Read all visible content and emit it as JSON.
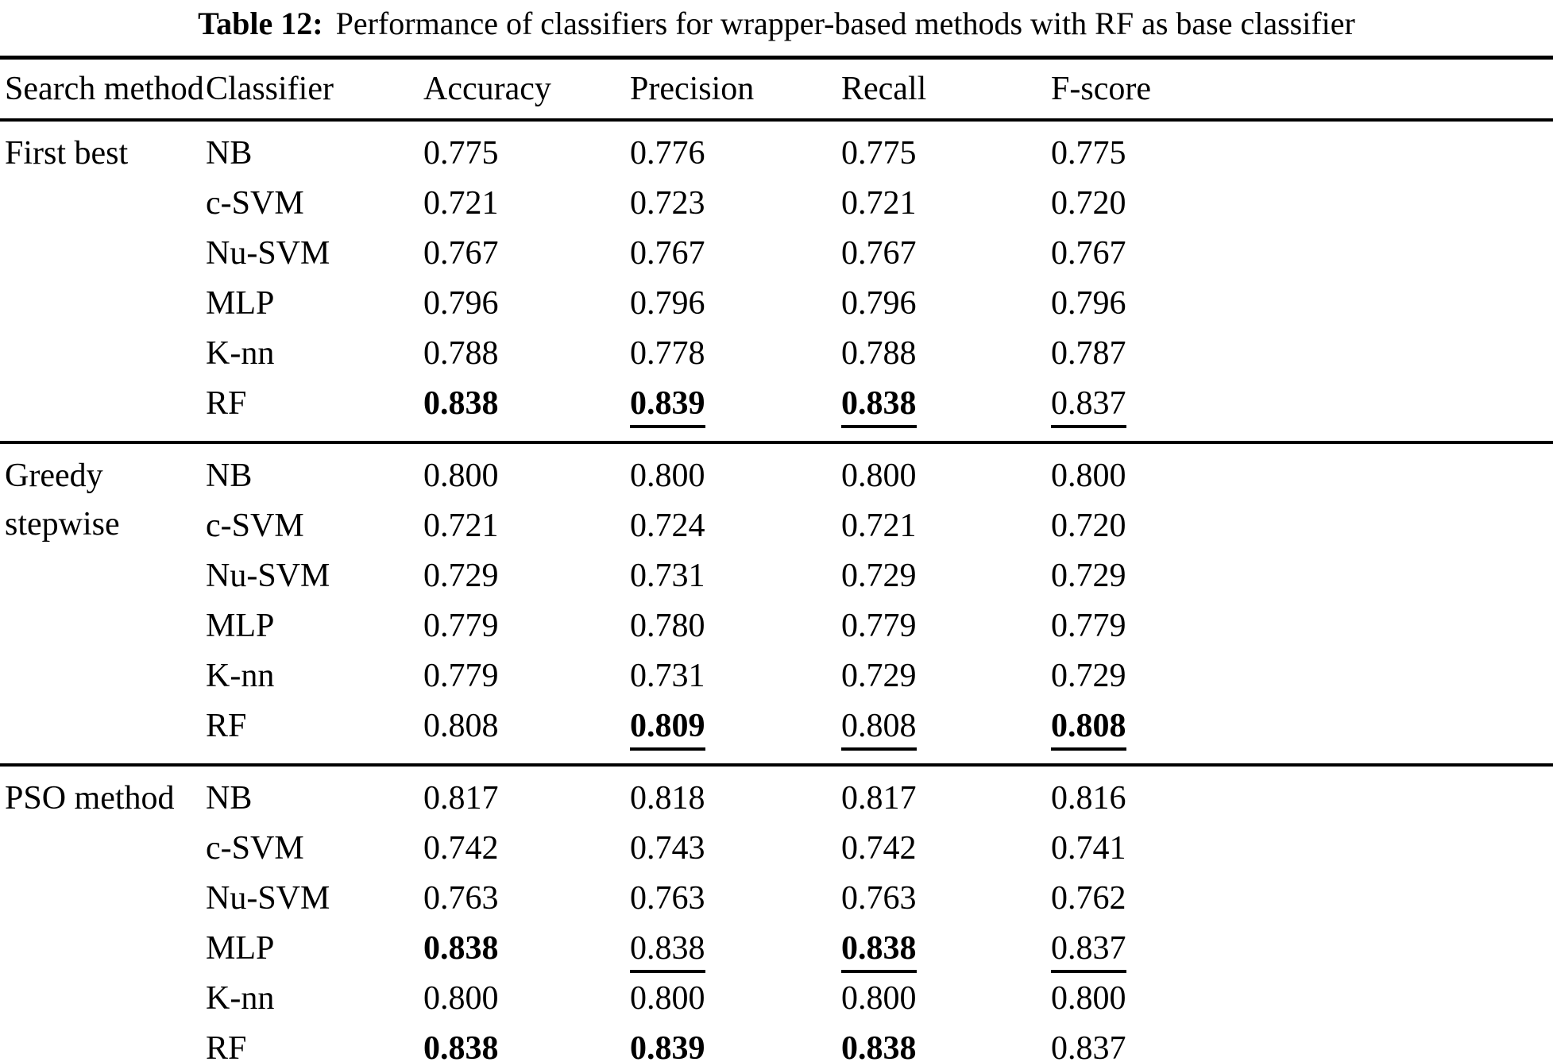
{
  "caption": {
    "label": "Table 12:",
    "text": "Performance of classifiers for wrapper-based methods with RF as base classifier"
  },
  "table": {
    "headers": [
      "Search method",
      "Classifier",
      "Accuracy",
      "Precision",
      "Recall",
      "F-score"
    ],
    "groups": [
      {
        "method": "First best",
        "rows": [
          {
            "classifier": "NB",
            "values": [
              {
                "v": "0.775"
              },
              {
                "v": "0.776"
              },
              {
                "v": "0.775"
              },
              {
                "v": "0.775"
              }
            ]
          },
          {
            "classifier": "c-SVM",
            "values": [
              {
                "v": "0.721"
              },
              {
                "v": "0.723"
              },
              {
                "v": "0.721"
              },
              {
                "v": "0.720"
              }
            ]
          },
          {
            "classifier": "Nu-SVM",
            "values": [
              {
                "v": "0.767"
              },
              {
                "v": "0.767"
              },
              {
                "v": "0.767"
              },
              {
                "v": "0.767"
              }
            ]
          },
          {
            "classifier": "MLP",
            "values": [
              {
                "v": "0.796"
              },
              {
                "v": "0.796"
              },
              {
                "v": "0.796"
              },
              {
                "v": "0.796"
              }
            ]
          },
          {
            "classifier": "K-nn",
            "values": [
              {
                "v": "0.788"
              },
              {
                "v": "0.778"
              },
              {
                "v": "0.788"
              },
              {
                "v": "0.787"
              }
            ]
          },
          {
            "classifier": "RF",
            "values": [
              {
                "v": "0.838",
                "b": true
              },
              {
                "v": "0.839",
                "b": true,
                "u": true
              },
              {
                "v": "0.838",
                "b": true,
                "u": true
              },
              {
                "v": "0.837",
                "u": true
              }
            ]
          }
        ]
      },
      {
        "method": "Greedy stepwise",
        "rows": [
          {
            "classifier": "NB",
            "values": [
              {
                "v": "0.800"
              },
              {
                "v": "0.800"
              },
              {
                "v": "0.800"
              },
              {
                "v": "0.800"
              }
            ]
          },
          {
            "classifier": "c-SVM",
            "values": [
              {
                "v": "0.721"
              },
              {
                "v": "0.724"
              },
              {
                "v": "0.721"
              },
              {
                "v": "0.720"
              }
            ]
          },
          {
            "classifier": "Nu-SVM",
            "values": [
              {
                "v": "0.729"
              },
              {
                "v": "0.731"
              },
              {
                "v": "0.729"
              },
              {
                "v": "0.729"
              }
            ]
          },
          {
            "classifier": "MLP",
            "values": [
              {
                "v": "0.779"
              },
              {
                "v": "0.780"
              },
              {
                "v": "0.779"
              },
              {
                "v": "0.779"
              }
            ]
          },
          {
            "classifier": "K-nn",
            "values": [
              {
                "v": "0.779"
              },
              {
                "v": "0.731"
              },
              {
                "v": "0.729"
              },
              {
                "v": "0.729"
              }
            ]
          },
          {
            "classifier": "RF",
            "values": [
              {
                "v": "0.808"
              },
              {
                "v": "0.809",
                "b": true,
                "u": true
              },
              {
                "v": "0.808",
                "u": true
              },
              {
                "v": "0.808",
                "b": true,
                "u": true
              }
            ]
          }
        ]
      },
      {
        "method": "PSO method",
        "rows": [
          {
            "classifier": "NB",
            "values": [
              {
                "v": "0.817"
              },
              {
                "v": "0.818"
              },
              {
                "v": "0.817"
              },
              {
                "v": "0.816"
              }
            ]
          },
          {
            "classifier": "c-SVM",
            "values": [
              {
                "v": "0.742"
              },
              {
                "v": "0.743"
              },
              {
                "v": "0.742"
              },
              {
                "v": "0.741"
              }
            ]
          },
          {
            "classifier": "Nu-SVM",
            "values": [
              {
                "v": "0.763"
              },
              {
                "v": "0.763"
              },
              {
                "v": "0.763"
              },
              {
                "v": "0.762"
              }
            ]
          },
          {
            "classifier": "MLP",
            "values": [
              {
                "v": "0.838",
                "b": true
              },
              {
                "v": "0.838",
                "u": true
              },
              {
                "v": "0.838",
                "b": true,
                "u": true
              },
              {
                "v": "0.837",
                "u": true
              }
            ]
          },
          {
            "classifier": "K-nn",
            "values": [
              {
                "v": "0.800"
              },
              {
                "v": "0.800"
              },
              {
                "v": "0.800"
              },
              {
                "v": "0.800"
              }
            ]
          },
          {
            "classifier": "RF",
            "values": [
              {
                "v": "0.838",
                "b": true
              },
              {
                "v": "0.839",
                "b": true,
                "u": true
              },
              {
                "v": "0.838",
                "b": true,
                "u": true
              },
              {
                "v": "0.837",
                "u": true
              }
            ]
          }
        ]
      }
    ]
  }
}
